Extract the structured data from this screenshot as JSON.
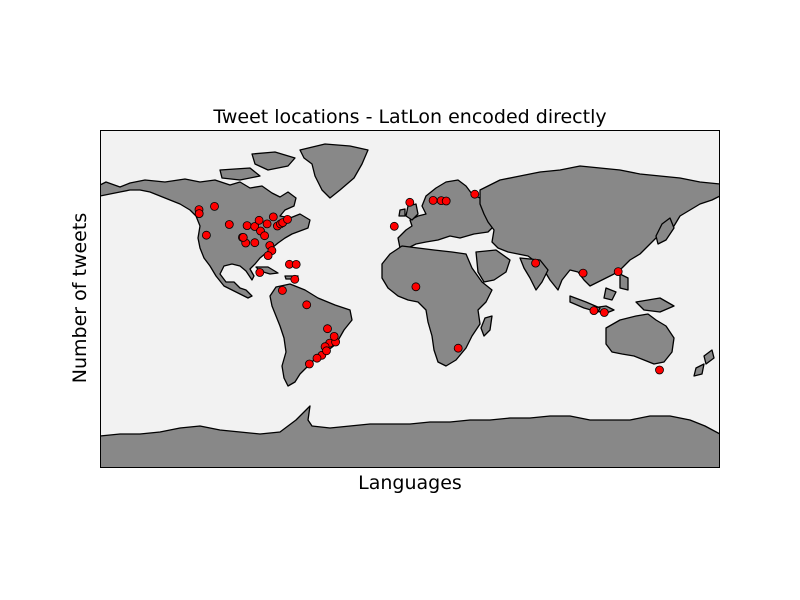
{
  "chart_data": {
    "type": "scatter",
    "projection": "equirectangular",
    "title": "Tweet locations - LatLon encoded directly",
    "xlabel": "Languages",
    "ylabel": "Number of tweets",
    "xlim": [
      -180,
      180
    ],
    "ylim": [
      -90,
      90
    ],
    "marker_color": "#ff0000",
    "marker_edge": "#000000",
    "land_color": "#888888",
    "ocean_color": "#f2f2f2",
    "points": [
      {
        "lon": -122.5,
        "lat": 47.6
      },
      {
        "lon": -122.4,
        "lat": 45.5
      },
      {
        "lon": -113.5,
        "lat": 49.3
      },
      {
        "lon": -118.2,
        "lat": 34.0
      },
      {
        "lon": -104.9,
        "lat": 39.7
      },
      {
        "lon": -97.3,
        "lat": 32.8
      },
      {
        "lon": -94.6,
        "lat": 39.1
      },
      {
        "lon": -90.2,
        "lat": 38.6
      },
      {
        "lon": -87.6,
        "lat": 41.9
      },
      {
        "lon": -86.8,
        "lat": 36.2
      },
      {
        "lon": -84.4,
        "lat": 33.7
      },
      {
        "lon": -83.0,
        "lat": 40.0
      },
      {
        "lon": -81.4,
        "lat": 28.5
      },
      {
        "lon": -80.2,
        "lat": 25.8
      },
      {
        "lon": -77.0,
        "lat": 38.9
      },
      {
        "lon": -75.2,
        "lat": 40.0
      },
      {
        "lon": -73.9,
        "lat": 40.7
      },
      {
        "lon": -71.1,
        "lat": 42.4
      },
      {
        "lon": -79.4,
        "lat": 43.7
      },
      {
        "lon": -90.1,
        "lat": 30.0
      },
      {
        "lon": -95.4,
        "lat": 29.8
      },
      {
        "lon": -96.8,
        "lat": 32.8
      },
      {
        "lon": -82.4,
        "lat": 23.1
      },
      {
        "lon": -70.0,
        "lat": 18.5
      },
      {
        "lon": -66.1,
        "lat": 18.4
      },
      {
        "lon": -87.2,
        "lat": 14.1
      },
      {
        "lon": -74.1,
        "lat": 4.6
      },
      {
        "lon": -66.9,
        "lat": 10.5
      },
      {
        "lon": -60.0,
        "lat": -3.1
      },
      {
        "lon": -46.6,
        "lat": -23.5
      },
      {
        "lon": -43.2,
        "lat": -22.9
      },
      {
        "lon": -49.3,
        "lat": -25.4
      },
      {
        "lon": -47.9,
        "lat": -15.8
      },
      {
        "lon": -51.2,
        "lat": -30.0
      },
      {
        "lon": -48.5,
        "lat": -27.6
      },
      {
        "lon": -58.4,
        "lat": -34.6
      },
      {
        "lon": -54.0,
        "lat": -31.5
      },
      {
        "lon": -44.0,
        "lat": -19.9
      },
      {
        "lon": -0.1,
        "lat": 51.5
      },
      {
        "lon": -9.1,
        "lat": 38.7
      },
      {
        "lon": 13.4,
        "lat": 52.5
      },
      {
        "lon": 18.1,
        "lat": 52.4
      },
      {
        "lon": 21.0,
        "lat": 52.2
      },
      {
        "lon": 37.6,
        "lat": 55.8
      },
      {
        "lon": 3.4,
        "lat": 6.5
      },
      {
        "lon": 28.0,
        "lat": -26.2
      },
      {
        "lon": 72.9,
        "lat": 19.1
      },
      {
        "lon": 100.5,
        "lat": 13.8
      },
      {
        "lon": 106.8,
        "lat": -6.2
      },
      {
        "lon": 112.8,
        "lat": -7.2
      },
      {
        "lon": 120.9,
        "lat": 14.6
      },
      {
        "lon": 144.9,
        "lat": -37.8
      }
    ]
  }
}
